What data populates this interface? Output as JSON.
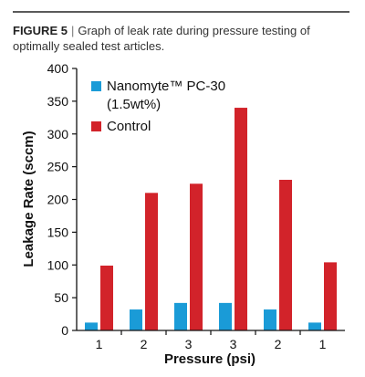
{
  "caption": {
    "figure_label": "FIGURE 5",
    "separator": "|",
    "text": "Graph of leak rate during pressure testing of optimally sealed test articles."
  },
  "chart_data": {
    "type": "bar",
    "title": "",
    "xlabel": "Pressure (psi)",
    "ylabel": "Leakage Rate (sccm)",
    "categories": [
      "1",
      "2",
      "3",
      "3",
      "2",
      "1"
    ],
    "ylim": [
      0,
      400
    ],
    "yticks": [
      0,
      50,
      100,
      150,
      200,
      250,
      300,
      350,
      400
    ],
    "grid": false,
    "legend_position": "top-left",
    "series": [
      {
        "name": "Nanomyte™ PC-30",
        "name_line2": "(1.5wt%)",
        "color": "#1a9bd7",
        "values": [
          12,
          32,
          42,
          42,
          32,
          12
        ]
      },
      {
        "name": "Control",
        "name_line2": "",
        "color": "#d2232a",
        "values": [
          99,
          210,
          224,
          340,
          230,
          104
        ]
      }
    ]
  }
}
